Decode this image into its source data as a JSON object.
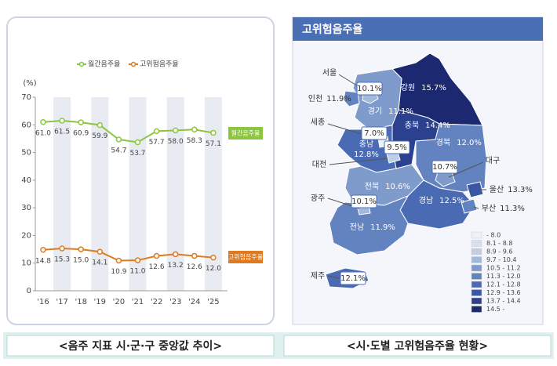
{
  "chart_data": [
    {
      "type": "line",
      "y_label": "(%)",
      "categories": [
        "'16",
        "'17",
        "'18",
        "'19",
        "'20",
        "'21",
        "'22",
        "'23",
        "'24",
        "'25"
      ],
      "series": [
        {
          "name": "월간음주율",
          "color": "#8cc63f",
          "values": [
            61.0,
            61.5,
            60.9,
            59.9,
            54.7,
            53.7,
            57.7,
            58.0,
            58.3,
            57.1
          ],
          "value_labels": [
            "61.0",
            "61.5",
            "60.9",
            "59.9",
            "54.7",
            "53.7",
            "57.7",
            "58.0",
            "58.3",
            "57.1"
          ]
        },
        {
          "name": "고위험음주율",
          "color": "#e07a20",
          "values": [
            14.8,
            15.3,
            15.0,
            14.1,
            10.9,
            11.0,
            12.6,
            13.2,
            12.6,
            12.0
          ],
          "value_labels": [
            "14.8",
            "15.3",
            "15.0",
            "14.1",
            "10.9",
            "11.0",
            "12.6",
            "13.2",
            "12.6",
            "12.0"
          ]
        }
      ],
      "ylim": [
        0,
        70
      ],
      "yticks": [
        0,
        10,
        20,
        30,
        40,
        50,
        60,
        70
      ],
      "caption": "<음주 지표 시·군·구 중앙값 추이>"
    },
    {
      "type": "map",
      "title": "고위험음주율",
      "categories": [
        "강원",
        "경기",
        "충북",
        "충남",
        "경북",
        "전북",
        "경남",
        "전남",
        "제주",
        "서울",
        "인천",
        "세종",
        "대전",
        "대구",
        "광주",
        "울산",
        "부산"
      ],
      "values": [
        15.7,
        11.1,
        14.4,
        12.8,
        12.0,
        10.6,
        12.5,
        11.9,
        12.1,
        10.1,
        11.9,
        7.0,
        9.5,
        10.7,
        10.1,
        13.3,
        11.3
      ],
      "value_labels": [
        "15.7%",
        "11.1%",
        "14.4%",
        "12.8%",
        "12.0%",
        "10.6%",
        "12.5%",
        "11.9%",
        "12.1%",
        "10.1%",
        "11.9%",
        "7.0%",
        "9.5%",
        "10.7%",
        "10.1%",
        "13.3%",
        "11.3%"
      ],
      "legend": [
        {
          "label": "- 8.0",
          "max": 8.0,
          "color": "#eef1f8"
        },
        {
          "label": "8.1 - 8.8",
          "max": 8.8,
          "color": "#d6e0ef"
        },
        {
          "label": "8.9 - 9.6",
          "max": 9.6,
          "color": "#bfcfe6"
        },
        {
          "label": "9.7 - 10.4",
          "max": 10.4,
          "color": "#a3b9dc"
        },
        {
          "label": "10.5 - 11.2",
          "max": 11.2,
          "color": "#7f9bcc"
        },
        {
          "label": "11.3 - 12.0",
          "max": 12.0,
          "color": "#6383c0"
        },
        {
          "label": "12.1 - 12.8",
          "max": 12.8,
          "color": "#4a6bb3"
        },
        {
          "label": "12.9 - 13.6",
          "max": 13.6,
          "color": "#3a57a3"
        },
        {
          "label": "13.7 - 14.4",
          "max": 14.4,
          "color": "#2c4090"
        },
        {
          "label": "14.5 -",
          "color": "#1c2870"
        }
      ],
      "caption": "<시·도별 고위험음주율 현황>"
    }
  ]
}
